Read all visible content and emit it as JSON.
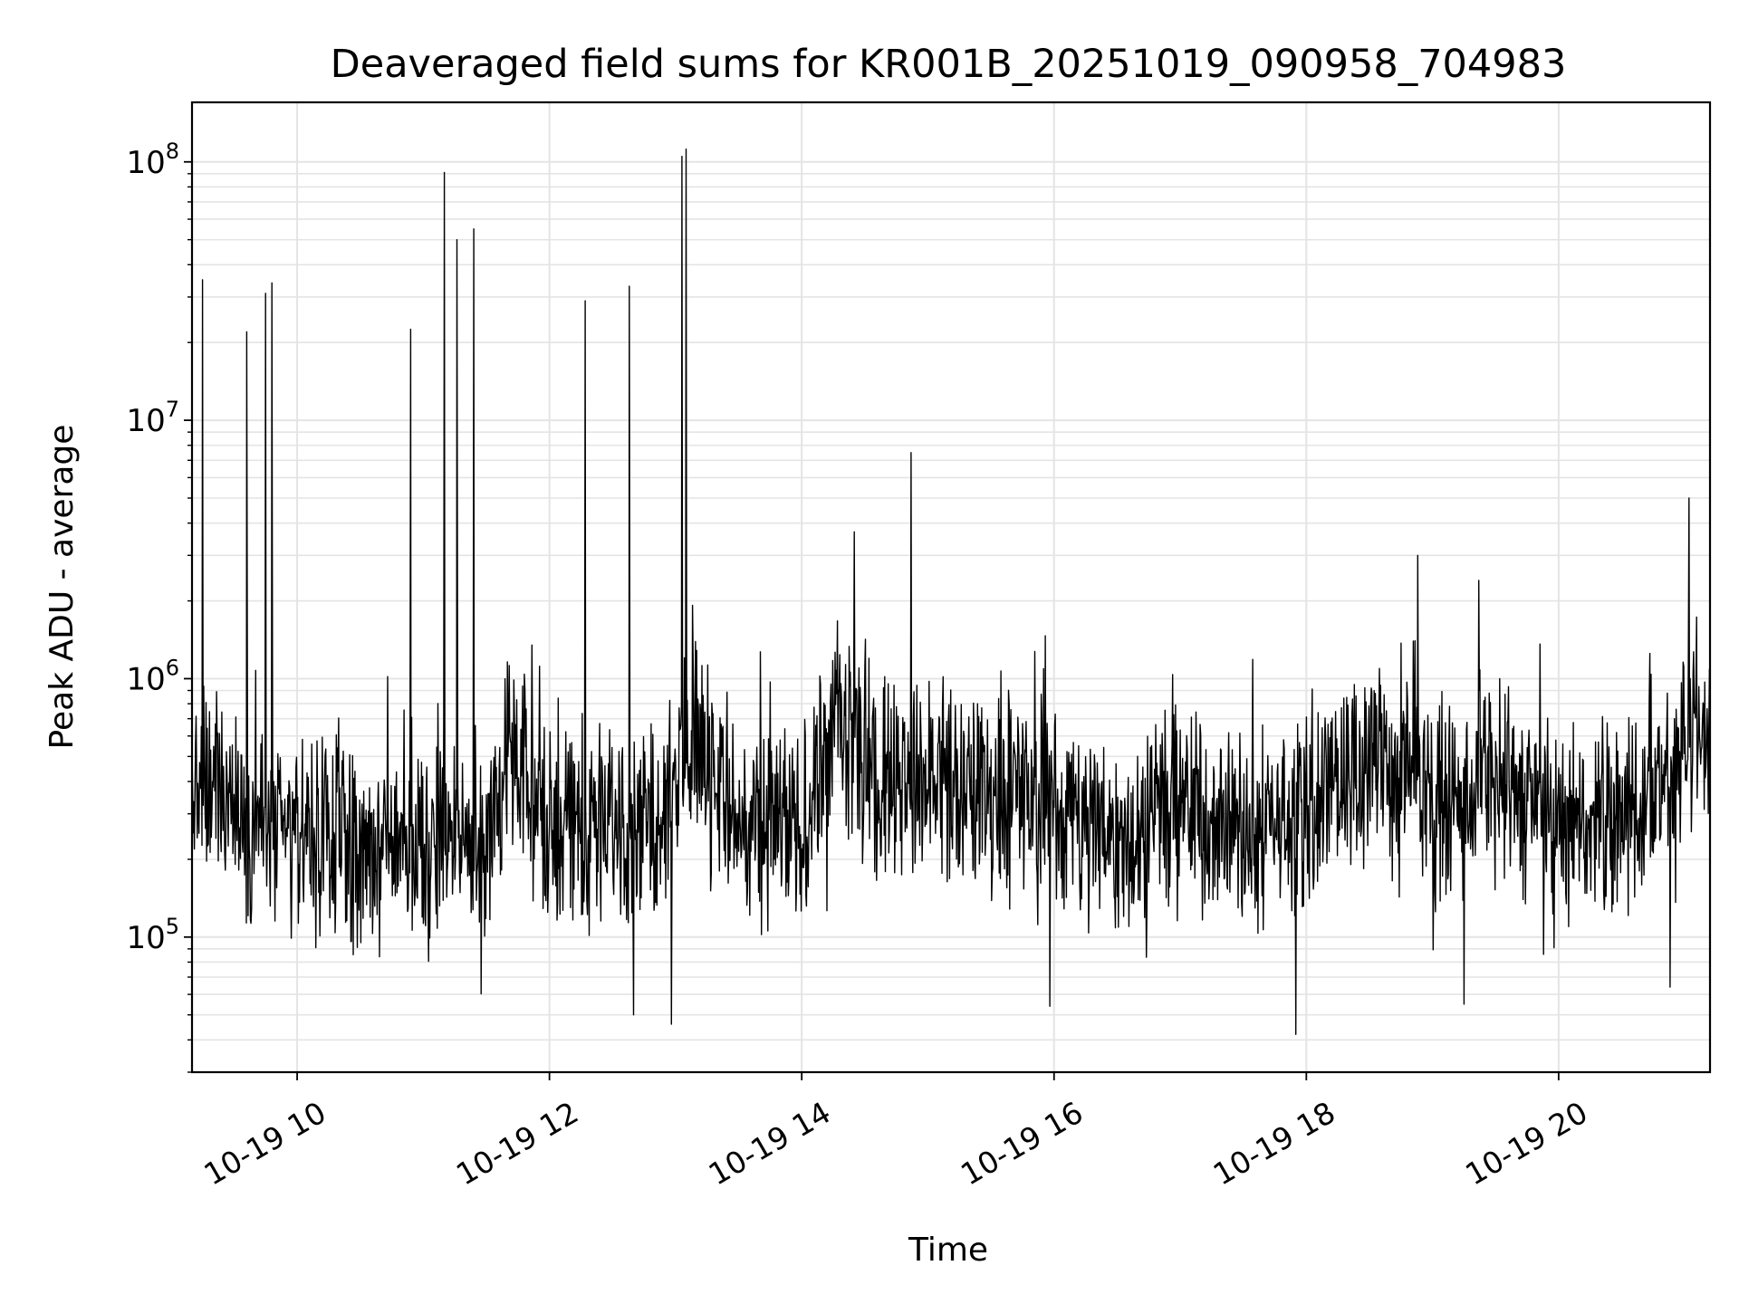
{
  "chart_data": {
    "type": "line",
    "title": "Deaveraged field sums for KR001B_20251019_090958_704983",
    "xlabel": "Time",
    "ylabel": "Peak ADU - average",
    "y_scale": "log",
    "ylim": [
      30000,
      170000000
    ],
    "xlim": [
      "2025-10-19 09:10",
      "2025-10-19 21:12"
    ],
    "grid": true,
    "x_ticks": [
      {
        "value": "2025-10-19 10:00",
        "label": "10-19 10"
      },
      {
        "value": "2025-10-19 12:00",
        "label": "10-19 12"
      },
      {
        "value": "2025-10-19 14:00",
        "label": "10-19 14"
      },
      {
        "value": "2025-10-19 16:00",
        "label": "10-19 16"
      },
      {
        "value": "2025-10-19 18:00",
        "label": "10-19 18"
      },
      {
        "value": "2025-10-19 20:00",
        "label": "10-19 20"
      }
    ],
    "y_ticks": [
      {
        "value": 100000,
        "base": "10",
        "exp": "5"
      },
      {
        "value": 1000000,
        "base": "10",
        "exp": "6"
      },
      {
        "value": 10000000,
        "base": "10",
        "exp": "7"
      },
      {
        "value": 100000000,
        "base": "10",
        "exp": "8"
      }
    ],
    "series_color": "#000000",
    "spikes": [
      {
        "x": "2025-10-19 09:15",
        "y": 35000000
      },
      {
        "x": "2025-10-19 09:36",
        "y": 22000000
      },
      {
        "x": "2025-10-19 09:45",
        "y": 31000000
      },
      {
        "x": "2025-10-19 09:48",
        "y": 34000000
      },
      {
        "x": "2025-10-19 10:54",
        "y": 22500000
      },
      {
        "x": "2025-10-19 11:10",
        "y": 91000000
      },
      {
        "x": "2025-10-19 11:16",
        "y": 50000000
      },
      {
        "x": "2025-10-19 11:24",
        "y": 55000000
      },
      {
        "x": "2025-10-19 12:17",
        "y": 29000000
      },
      {
        "x": "2025-10-19 12:38",
        "y": 33000000
      },
      {
        "x": "2025-10-19 13:03",
        "y": 105000000
      },
      {
        "x": "2025-10-19 13:05",
        "y": 112000000
      },
      {
        "x": "2025-10-19 14:25",
        "y": 3700000
      },
      {
        "x": "2025-10-19 14:52",
        "y": 7500000
      },
      {
        "x": "2025-10-19 18:53",
        "y": 3000000
      },
      {
        "x": "2025-10-19 19:22",
        "y": 2400000
      },
      {
        "x": "2025-10-19 21:02",
        "y": 5000000
      }
    ],
    "dips": [
      {
        "x": "2025-10-19 12:40",
        "y": 50000
      },
      {
        "x": "2025-10-19 12:58",
        "y": 46000
      },
      {
        "x": "2025-10-19 15:58",
        "y": 54000
      },
      {
        "x": "2025-10-19 17:55",
        "y": 42000
      },
      {
        "x": "2025-10-19 19:15",
        "y": 55000
      },
      {
        "x": "2025-10-19 20:53",
        "y": 64000
      }
    ],
    "baseline": [
      {
        "x": "2025-10-19 09:10",
        "y": 300000
      },
      {
        "x": "2025-10-19 09:20",
        "y": 400000
      },
      {
        "x": "2025-10-19 09:40",
        "y": 260000
      },
      {
        "x": "2025-10-19 10:30",
        "y": 220000
      },
      {
        "x": "2025-10-19 11:30",
        "y": 240000
      },
      {
        "x": "2025-10-19 11:40",
        "y": 480000
      },
      {
        "x": "2025-10-19 12:00",
        "y": 280000
      },
      {
        "x": "2025-10-19 12:50",
        "y": 280000
      },
      {
        "x": "2025-10-19 13:10",
        "y": 650000
      },
      {
        "x": "2025-10-19 13:30",
        "y": 270000
      },
      {
        "x": "2025-10-19 14:00",
        "y": 260000
      },
      {
        "x": "2025-10-19 14:15",
        "y": 700000
      },
      {
        "x": "2025-10-19 14:30",
        "y": 450000
      },
      {
        "x": "2025-10-19 15:00",
        "y": 400000
      },
      {
        "x": "2025-10-19 15:30",
        "y": 380000
      },
      {
        "x": "2025-10-19 16:00",
        "y": 330000
      },
      {
        "x": "2025-10-19 16:30",
        "y": 250000
      },
      {
        "x": "2025-10-19 17:00",
        "y": 330000
      },
      {
        "x": "2025-10-19 17:30",
        "y": 250000
      },
      {
        "x": "2025-10-19 18:00",
        "y": 320000
      },
      {
        "x": "2025-10-19 18:30",
        "y": 520000
      },
      {
        "x": "2025-10-19 19:00",
        "y": 300000
      },
      {
        "x": "2025-10-19 19:30",
        "y": 420000
      },
      {
        "x": "2025-10-19 20:00",
        "y": 240000
      },
      {
        "x": "2025-10-19 20:30",
        "y": 290000
      },
      {
        "x": "2025-10-19 20:55",
        "y": 450000
      },
      {
        "x": "2025-10-19 21:12",
        "y": 650000
      }
    ]
  }
}
